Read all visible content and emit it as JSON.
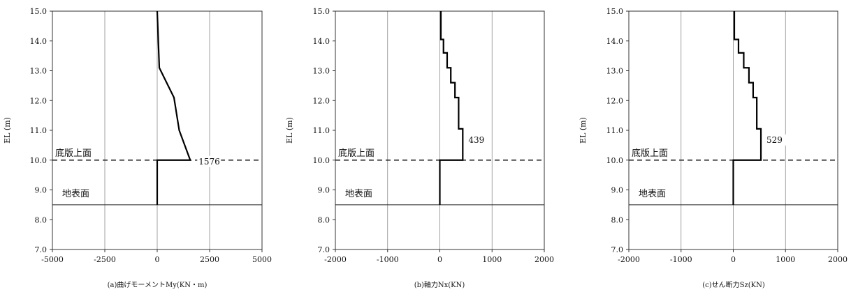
{
  "chart_data": [
    {
      "type": "line",
      "caption": "(a)曲げモーメントMy(KN・m)",
      "ylabel": "EL (m)",
      "xlim": [
        -5000,
        5000
      ],
      "xticks": [
        "-5000",
        "-2500",
        "0",
        "2500",
        "5000"
      ],
      "xtick_values": [
        -5000,
        -2500,
        0,
        2500,
        5000
      ],
      "ylim": [
        7.0,
        15.0
      ],
      "yticks": [
        "7.0",
        "8.0",
        "9.0",
        "10.0",
        "11.0",
        "12.0",
        "13.0",
        "14.0",
        "15.0"
      ],
      "grid": "vertical",
      "series": [
        {
          "x": [
            0,
            0,
            1576,
            1050,
            800,
            450,
            100,
            0
          ],
          "y": [
            8.5,
            10.0,
            10.0,
            11.0,
            12.1,
            12.6,
            13.1,
            15.0
          ]
        }
      ],
      "annotations": {
        "slab_label": "底版上面",
        "slab_el": 10.0,
        "ground_label": "地表面",
        "ground_el": 8.5
      },
      "value_label": {
        "text": "1576",
        "x": 1576,
        "y": 10.0
      }
    },
    {
      "type": "line",
      "caption": "(b)軸力Nx(KN)",
      "ylabel": "EL (m)",
      "xlim": [
        -2000,
        2000
      ],
      "xticks": [
        "-2000",
        "-1000",
        "0",
        "1000",
        "2000"
      ],
      "xtick_values": [
        -2000,
        -1000,
        0,
        1000,
        2000
      ],
      "ylim": [
        7.0,
        15.0
      ],
      "yticks": [
        "7.0",
        "8.0",
        "9.0",
        "10.0",
        "11.0",
        "12.0",
        "13.0",
        "14.0",
        "15.0"
      ],
      "grid": "vertical",
      "series": [
        {
          "x": [
            0,
            0,
            439,
            439,
            360,
            360,
            290,
            290,
            210,
            210,
            140,
            140,
            70,
            70,
            20,
            20
          ],
          "y": [
            8.5,
            10.0,
            10.0,
            11.05,
            11.05,
            12.1,
            12.1,
            12.6,
            12.6,
            13.1,
            13.1,
            13.6,
            13.6,
            14.05,
            14.05,
            15.0
          ]
        }
      ],
      "annotations": {
        "slab_label": "底版上面",
        "slab_el": 10.0,
        "ground_label": "地表面",
        "ground_el": 8.5
      },
      "value_label": {
        "text": "439",
        "x": 439,
        "y": 11.05
      }
    },
    {
      "type": "line",
      "caption": "(c)せん断力Sz(KN)",
      "ylabel": "EL (m)",
      "xlim": [
        -2000,
        2000
      ],
      "xticks": [
        "-2000",
        "-1000",
        "0",
        "1000",
        "2000"
      ],
      "xtick_values": [
        -2000,
        -1000,
        0,
        1000,
        2000
      ],
      "ylim": [
        7.0,
        15.0
      ],
      "yticks": [
        "7.0",
        "8.0",
        "9.0",
        "10.0",
        "11.0",
        "12.0",
        "13.0",
        "14.0",
        "15.0"
      ],
      "grid": "vertical",
      "series": [
        {
          "x": [
            0,
            0,
            529,
            529,
            450,
            450,
            380,
            380,
            300,
            300,
            200,
            200,
            100,
            100,
            20,
            20
          ],
          "y": [
            8.5,
            10.0,
            10.0,
            11.05,
            11.05,
            12.1,
            12.1,
            12.6,
            12.6,
            13.1,
            13.1,
            13.6,
            13.6,
            14.05,
            14.05,
            15.0
          ]
        }
      ],
      "annotations": {
        "slab_label": "底版上面",
        "slab_el": 10.0,
        "ground_label": "地表面",
        "ground_el": 8.5
      },
      "value_label": {
        "text": "529",
        "x": 529,
        "y": 11.05
      }
    }
  ]
}
